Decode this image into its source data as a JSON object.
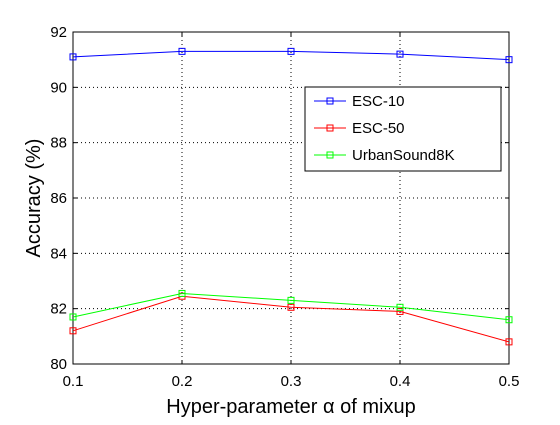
{
  "chart_data": {
    "type": "line",
    "x": [
      0.1,
      0.2,
      0.3,
      0.4,
      0.5
    ],
    "xticks": [
      "0.1",
      "0.2",
      "0.3",
      "0.4",
      "0.5"
    ],
    "yticks": [
      "80",
      "82",
      "84",
      "86",
      "88",
      "90",
      "92"
    ],
    "xlim": [
      0.1,
      0.5
    ],
    "ylim": [
      80,
      92
    ],
    "xlabel": "Hyper-parameter α of mixup",
    "ylabel": "Accuracy (%)",
    "grid": true,
    "grid_style": "dotted",
    "legend_position": "top-right",
    "marker": "square",
    "series": [
      {
        "name": "ESC-10",
        "color": "#0000ff",
        "values": [
          91.1,
          91.3,
          91.3,
          91.2,
          91.0
        ]
      },
      {
        "name": "ESC-50",
        "color": "#ff0000",
        "values": [
          81.2,
          82.45,
          82.05,
          81.9,
          80.8
        ]
      },
      {
        "name": "UrbanSound8K",
        "color": "#00ff00",
        "values": [
          81.7,
          82.55,
          82.3,
          82.05,
          81.6
        ]
      }
    ]
  }
}
